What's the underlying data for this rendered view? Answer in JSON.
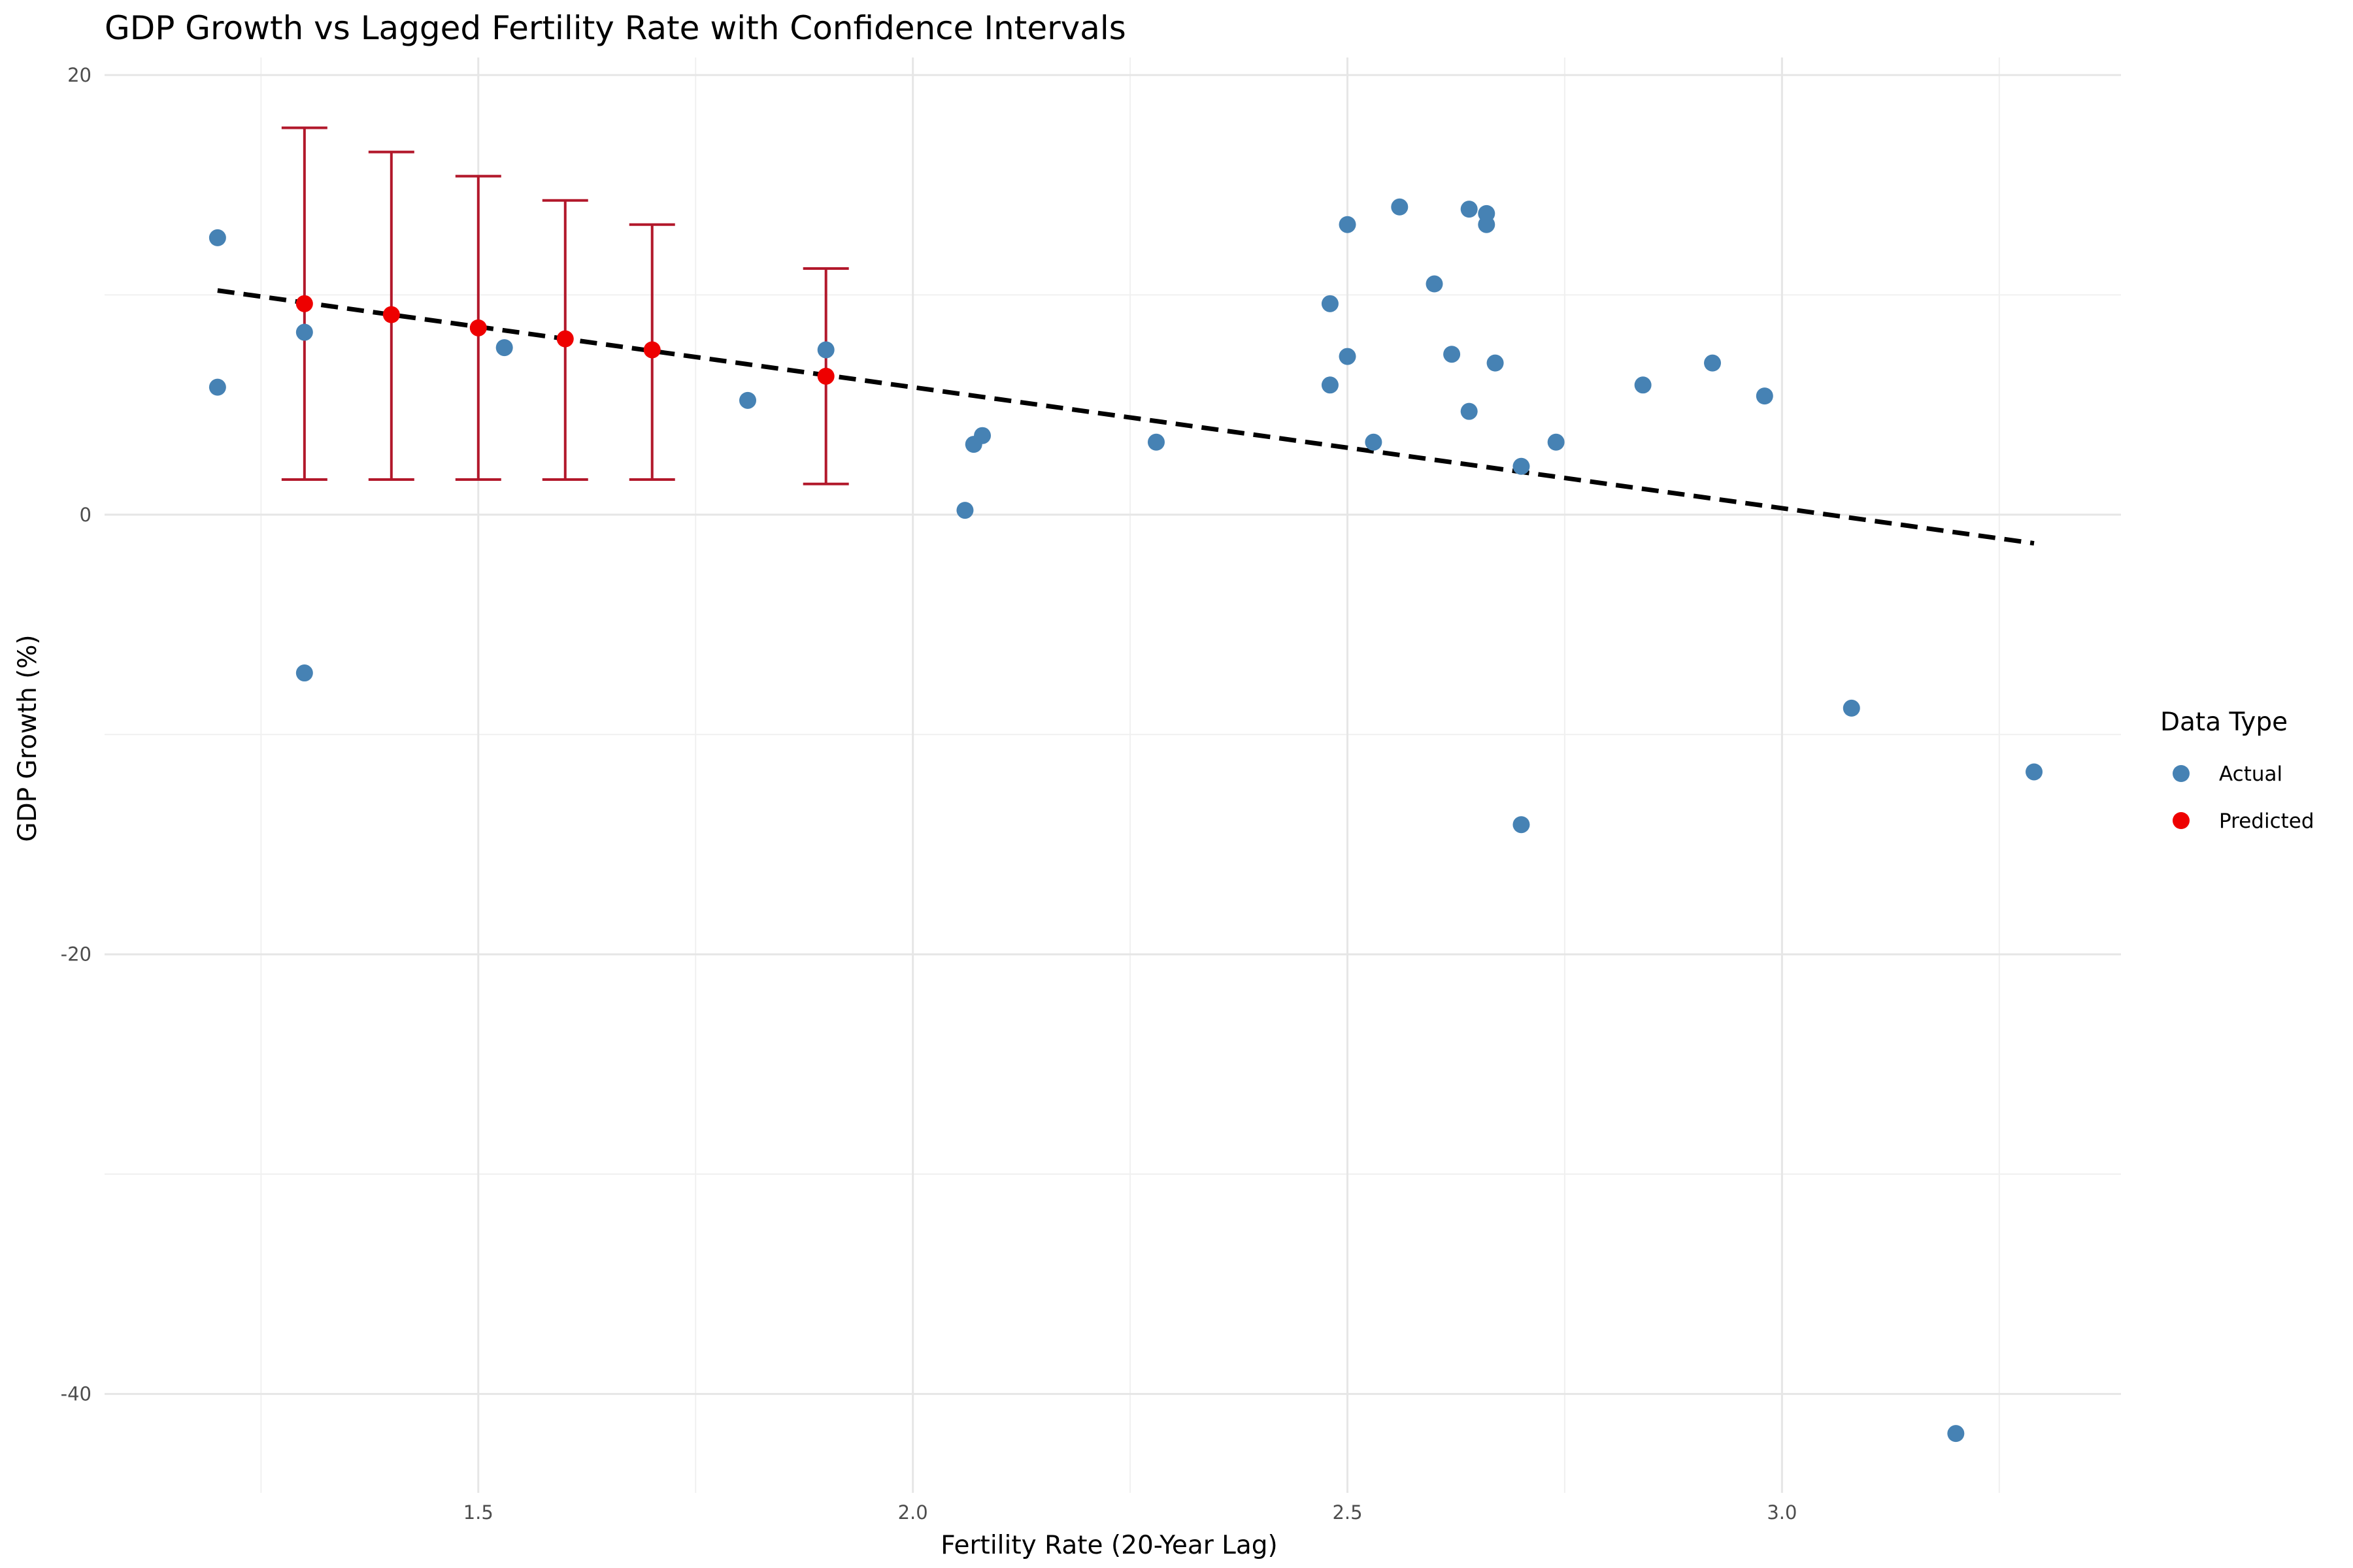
{
  "chart_data": {
    "type": "scatter",
    "title": "GDP Growth vs Lagged Fertility Rate with Confidence Intervals",
    "xlabel": "Fertility Rate (20-Year Lag)",
    "ylabel": "GDP Growth (%)",
    "xlim": [
      1.07,
      3.39
    ],
    "ylim": [
      -44.5,
      20.8
    ],
    "x_ticks": [
      1.5,
      2.0,
      2.5,
      3.0
    ],
    "x_tick_labels": [
      "1.5",
      "2.0",
      "2.5",
      "3.0"
    ],
    "y_ticks": [
      20,
      0,
      -20,
      -40
    ],
    "y_tick_labels": [
      "20",
      "0",
      "-20",
      "-40"
    ],
    "grid": true,
    "legend": {
      "title": "Data Type",
      "position": "right",
      "entries": [
        {
          "label": "Actual",
          "color": "#4682B4"
        },
        {
          "label": "Predicted",
          "color": "#EE0000"
        }
      ]
    },
    "series": [
      {
        "name": "Actual",
        "color": "#4682B4",
        "points": [
          {
            "x": 1.2,
            "y": 12.6
          },
          {
            "x": 1.2,
            "y": 5.8
          },
          {
            "x": 1.3,
            "y": 8.3
          },
          {
            "x": 1.3,
            "y": -7.2
          },
          {
            "x": 1.53,
            "y": 7.6
          },
          {
            "x": 1.81,
            "y": 5.2
          },
          {
            "x": 1.9,
            "y": 7.5
          },
          {
            "x": 2.06,
            "y": 0.2
          },
          {
            "x": 2.07,
            "y": 3.2
          },
          {
            "x": 2.08,
            "y": 3.6
          },
          {
            "x": 2.28,
            "y": 3.3
          },
          {
            "x": 2.48,
            "y": 9.6
          },
          {
            "x": 2.48,
            "y": 5.9
          },
          {
            "x": 2.5,
            "y": 13.2
          },
          {
            "x": 2.5,
            "y": 7.2
          },
          {
            "x": 2.53,
            "y": 3.3
          },
          {
            "x": 2.56,
            "y": 14.0
          },
          {
            "x": 2.6,
            "y": 10.5
          },
          {
            "x": 2.62,
            "y": 7.3
          },
          {
            "x": 2.64,
            "y": 13.9
          },
          {
            "x": 2.64,
            "y": 4.7
          },
          {
            "x": 2.66,
            "y": 13.7
          },
          {
            "x": 2.66,
            "y": 13.2
          },
          {
            "x": 2.67,
            "y": 6.9
          },
          {
            "x": 2.7,
            "y": 2.2
          },
          {
            "x": 2.7,
            "y": -14.1
          },
          {
            "x": 2.74,
            "y": 3.3
          },
          {
            "x": 2.84,
            "y": 5.9
          },
          {
            "x": 2.92,
            "y": 6.9
          },
          {
            "x": 2.98,
            "y": 5.4
          },
          {
            "x": 3.08,
            "y": -8.8
          },
          {
            "x": 3.2,
            "y": -41.8
          },
          {
            "x": 3.29,
            "y": -11.7
          }
        ]
      },
      {
        "name": "Predicted",
        "color": "#EE0000",
        "errorbar_color": "#B2182B",
        "points": [
          {
            "x": 1.3,
            "y": 9.6,
            "lower": 1.6,
            "upper": 17.6
          },
          {
            "x": 1.4,
            "y": 9.1,
            "lower": 1.6,
            "upper": 16.5
          },
          {
            "x": 1.5,
            "y": 8.5,
            "lower": 1.6,
            "upper": 15.4
          },
          {
            "x": 1.6,
            "y": 8.0,
            "lower": 1.6,
            "upper": 14.3
          },
          {
            "x": 1.7,
            "y": 7.5,
            "lower": 1.6,
            "upper": 13.2
          },
          {
            "x": 1.9,
            "y": 6.3,
            "lower": 1.4,
            "upper": 11.2
          }
        ]
      }
    ],
    "trend_line": {
      "style": "dashed",
      "color": "#000000",
      "from": {
        "x": 1.2,
        "y": 10.2
      },
      "to": {
        "x": 3.29,
        "y": -1.3
      }
    }
  }
}
